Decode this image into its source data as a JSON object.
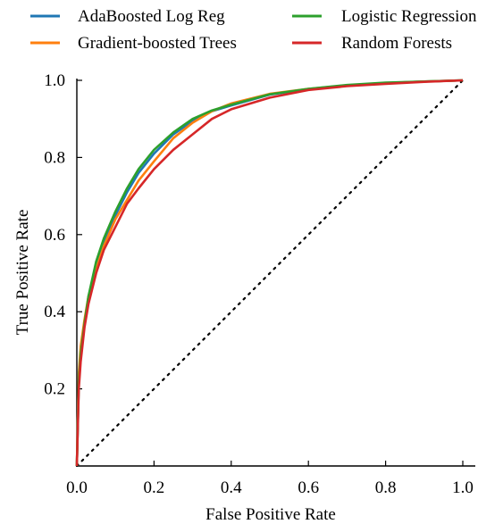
{
  "chart_data": {
    "type": "line",
    "title": "",
    "xlabel": "False Positive Rate",
    "ylabel": "True Positive Rate",
    "xlim": [
      0,
      1
    ],
    "ylim": [
      0,
      1
    ],
    "xticks": [
      "0.0",
      "0.2",
      "0.4",
      "0.6",
      "0.8",
      "1.0"
    ],
    "yticks": [
      "0.2",
      "0.4",
      "0.6",
      "0.8",
      "1.0"
    ],
    "grid": false,
    "legend_position": "top",
    "legend_columns": 2,
    "diagonal": {
      "style": "dotted",
      "color": "#000000",
      "x": [
        0,
        1
      ],
      "y": [
        0,
        1
      ]
    },
    "series": [
      {
        "name": "AdaBoosted Log Reg",
        "color": "#1f77b4",
        "x": [
          0,
          0.005,
          0.01,
          0.02,
          0.03,
          0.05,
          0.07,
          0.1,
          0.13,
          0.16,
          0.2,
          0.25,
          0.3,
          0.35,
          0.4,
          0.5,
          0.6,
          0.7,
          0.8,
          0.9,
          1.0
        ],
        "y": [
          0,
          0.22,
          0.29,
          0.37,
          0.43,
          0.52,
          0.58,
          0.65,
          0.71,
          0.76,
          0.81,
          0.86,
          0.895,
          0.92,
          0.935,
          0.963,
          0.977,
          0.987,
          0.993,
          0.997,
          1.0
        ]
      },
      {
        "name": "Gradient-boosted Trees",
        "color": "#ff7f0e",
        "x": [
          0,
          0.005,
          0.01,
          0.02,
          0.03,
          0.05,
          0.07,
          0.1,
          0.13,
          0.16,
          0.2,
          0.25,
          0.3,
          0.35,
          0.4,
          0.5,
          0.6,
          0.7,
          0.8,
          0.9,
          1.0
        ],
        "y": [
          0,
          0.24,
          0.31,
          0.38,
          0.44,
          0.51,
          0.57,
          0.64,
          0.69,
          0.74,
          0.79,
          0.85,
          0.89,
          0.92,
          0.94,
          0.965,
          0.978,
          0.987,
          0.993,
          0.997,
          1.0
        ]
      },
      {
        "name": "Logistic Regression",
        "color": "#2ca02c",
        "x": [
          0,
          0.005,
          0.01,
          0.02,
          0.03,
          0.05,
          0.07,
          0.1,
          0.13,
          0.16,
          0.2,
          0.25,
          0.3,
          0.35,
          0.4,
          0.5,
          0.6,
          0.7,
          0.8,
          0.9,
          1.0
        ],
        "y": [
          0,
          0.22,
          0.29,
          0.37,
          0.44,
          0.53,
          0.59,
          0.66,
          0.72,
          0.77,
          0.82,
          0.865,
          0.9,
          0.922,
          0.937,
          0.964,
          0.978,
          0.988,
          0.994,
          0.997,
          1.0
        ]
      },
      {
        "name": "Random Forests",
        "color": "#d62728",
        "x": [
          0,
          0.005,
          0.01,
          0.02,
          0.03,
          0.05,
          0.07,
          0.1,
          0.13,
          0.16,
          0.2,
          0.25,
          0.3,
          0.35,
          0.4,
          0.5,
          0.6,
          0.7,
          0.8,
          0.9,
          1.0
        ],
        "y": [
          0,
          0.2,
          0.27,
          0.36,
          0.42,
          0.5,
          0.56,
          0.62,
          0.68,
          0.72,
          0.77,
          0.82,
          0.86,
          0.9,
          0.925,
          0.955,
          0.975,
          0.985,
          0.991,
          0.996,
          1.0
        ]
      }
    ]
  }
}
